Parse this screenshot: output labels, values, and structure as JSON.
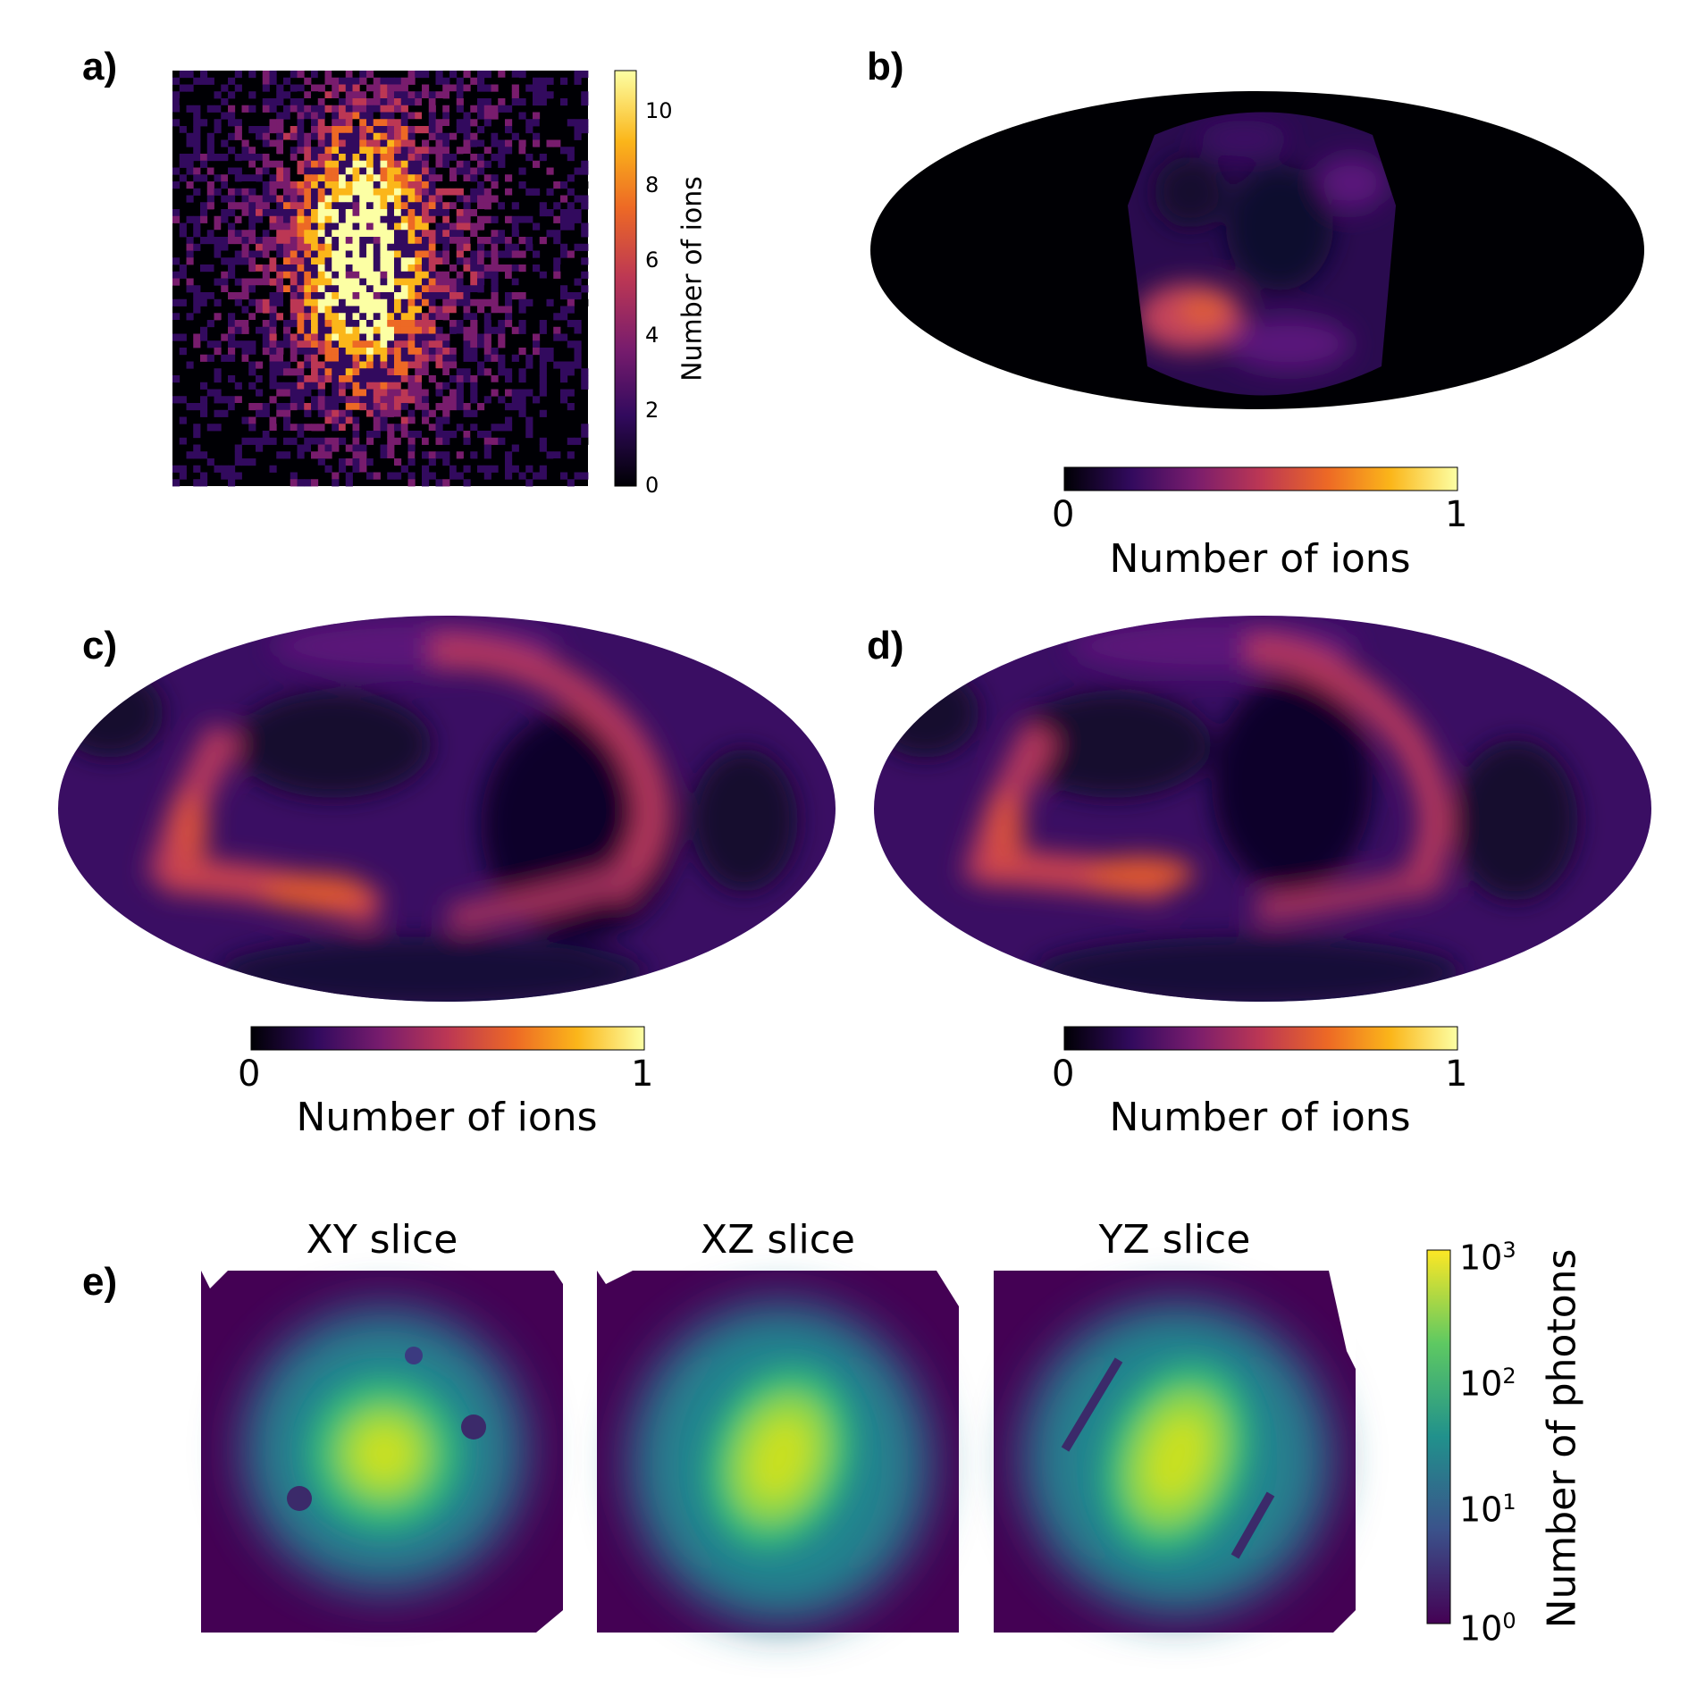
{
  "panels": {
    "a": {
      "label": "a)",
      "colorbar_label": "Number of ions",
      "ticks": [
        "0",
        "2",
        "4",
        "6",
        "8",
        "10"
      ]
    },
    "b": {
      "label": "b)",
      "colorbar_label": "Number of ions",
      "ticks": [
        "0",
        "1"
      ]
    },
    "c": {
      "label": "c)",
      "colorbar_label": "Number of ions",
      "ticks": [
        "0",
        "1"
      ]
    },
    "d": {
      "label": "d)",
      "colorbar_label": "Number of ions",
      "ticks": [
        "0",
        "1"
      ]
    },
    "e": {
      "label": "e)",
      "slices": [
        "XY slice",
        "XZ slice",
        "YZ slice"
      ],
      "colorbar_label": "Number of photons",
      "ticks": [
        {
          "base": "10",
          "exp": "3"
        },
        {
          "base": "10",
          "exp": "2"
        },
        {
          "base": "10",
          "exp": "1"
        },
        {
          "base": "10",
          "exp": "0"
        }
      ]
    }
  },
  "colormaps": {
    "inferno": [
      "#000004",
      "#320a5e",
      "#781c6d",
      "#bc3754",
      "#ed6925",
      "#fbb61a",
      "#fcffa4"
    ],
    "viridis": [
      "#440154",
      "#3b528b",
      "#21918c",
      "#5ec962",
      "#fde725"
    ]
  }
}
